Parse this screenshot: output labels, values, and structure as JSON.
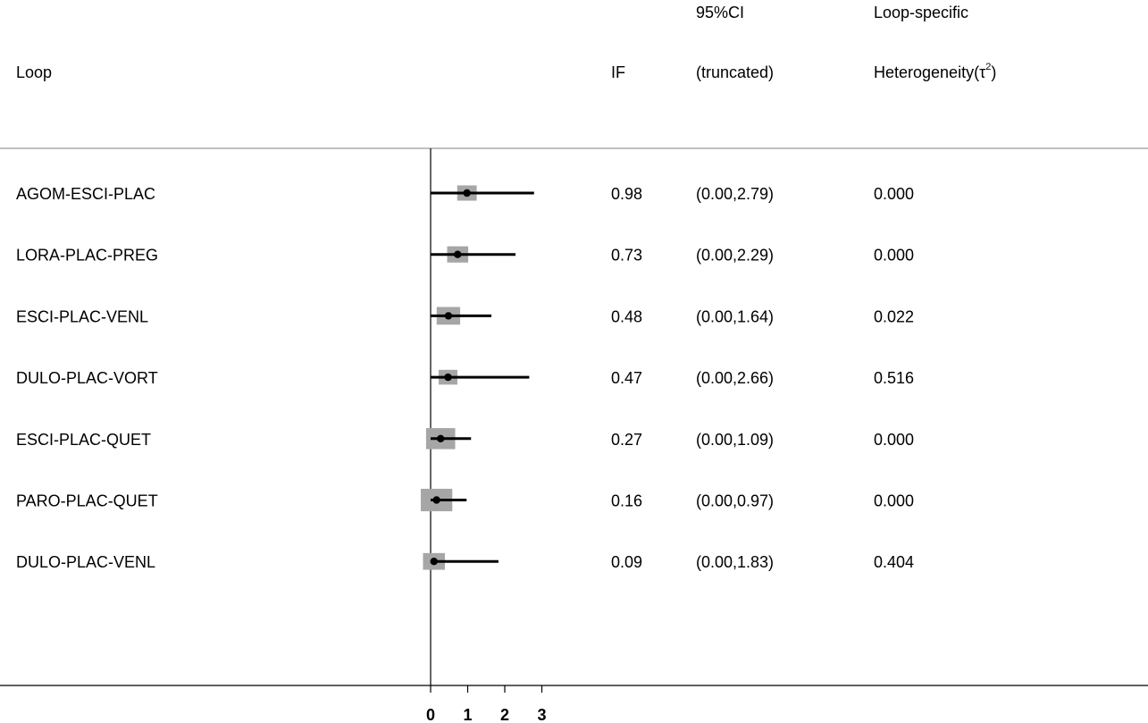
{
  "headers": {
    "loop": "Loop",
    "if": "IF",
    "ci_line1": "95%CI",
    "ci_line2": "(truncated)",
    "het_line1": "Loop-specific",
    "het_line2_prefix": "Heterogeneity(τ",
    "het_line2_sup": "2",
    "het_line2_suffix": ")"
  },
  "rows": [
    {
      "loop": "AGOM-ESCI-PLAC",
      "if": "0.98",
      "ci": "(0.00,2.79)",
      "het": "0.000"
    },
    {
      "loop": "LORA-PLAC-PREG",
      "if": "0.73",
      "ci": "(0.00,2.29)",
      "het": "0.000"
    },
    {
      "loop": "ESCI-PLAC-VENL",
      "if": "0.48",
      "ci": "(0.00,1.64)",
      "het": "0.022"
    },
    {
      "loop": "DULO-PLAC-VORT",
      "if": "0.47",
      "ci": "(0.00,2.66)",
      "het": "0.516"
    },
    {
      "loop": "ESCI-PLAC-QUET",
      "if": "0.27",
      "ci": "(0.00,1.09)",
      "het": "0.000"
    },
    {
      "loop": "PARO-PLAC-QUET",
      "if": "0.16",
      "ci": "(0.00,0.97)",
      "het": "0.000"
    },
    {
      "loop": "DULO-PLAC-VENL",
      "if": "0.09",
      "ci": "(0.00,1.83)",
      "het": "0.404"
    }
  ],
  "chart_data": {
    "type": "forest",
    "x_ticks": [
      0,
      1,
      2,
      3
    ],
    "xlim": [
      0,
      3
    ],
    "series": [
      {
        "label": "AGOM-ESCI-PLAC",
        "estimate": 0.98,
        "ci_low": 0.0,
        "ci_high": 2.79,
        "weight": 0.6
      },
      {
        "label": "LORA-PLAC-PREG",
        "estimate": 0.73,
        "ci_low": 0.0,
        "ci_high": 2.29,
        "weight": 0.7
      },
      {
        "label": "ESCI-PLAC-VENL",
        "estimate": 0.48,
        "ci_low": 0.0,
        "ci_high": 1.64,
        "weight": 0.85
      },
      {
        "label": "DULO-PLAC-VORT",
        "estimate": 0.47,
        "ci_low": 0.0,
        "ci_high": 2.66,
        "weight": 0.55
      },
      {
        "label": "ESCI-PLAC-QUET",
        "estimate": 0.27,
        "ci_low": 0.0,
        "ci_high": 1.09,
        "weight": 1.2
      },
      {
        "label": "PARO-PLAC-QUET",
        "estimate": 0.16,
        "ci_low": 0.0,
        "ci_high": 0.97,
        "weight": 1.35
      },
      {
        "label": "DULO-PLAC-VENL",
        "estimate": 0.09,
        "ci_low": 0.0,
        "ci_high": 1.83,
        "weight": 0.75
      }
    ],
    "colors": {
      "box": "#a6a6a6",
      "line": "#000000",
      "point": "#000000",
      "rule": "#999999"
    }
  }
}
